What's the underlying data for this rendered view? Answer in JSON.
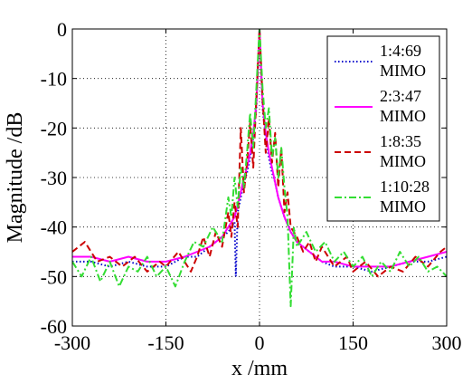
{
  "chart_data": {
    "type": "line",
    "xlabel": "x /mm",
    "ylabel": "Magnitude /dB",
    "xlim": [
      -300,
      300
    ],
    "ylim": [
      -60,
      0
    ],
    "xticks": [
      "-300",
      "-150",
      "0",
      "150",
      "300"
    ],
    "yticks": [
      "0",
      "-10",
      "-20",
      "-30",
      "-40",
      "-50",
      "-60"
    ],
    "grid": true,
    "legend_position": "top-right",
    "series": [
      {
        "name_line1": "1:4:69",
        "name_line2": "MIMO",
        "color": "#0000cc",
        "dash": "dotted",
        "x": [
          -300,
          -270,
          -240,
          -210,
          -180,
          -150,
          -120,
          -100,
          -80,
          -60,
          -50,
          -40,
          -38,
          -35,
          -30,
          -25,
          -20,
          -15,
          -10,
          -5,
          0,
          5,
          10,
          15,
          20,
          25,
          30,
          35,
          40,
          50,
          60,
          80,
          100,
          120,
          150,
          180,
          210,
          240,
          270,
          300
        ],
        "y": [
          -47,
          -47,
          -48,
          -47,
          -48,
          -48,
          -46,
          -46,
          -44,
          -42,
          -41,
          -39,
          -50,
          -37,
          -34,
          -31,
          -29,
          -26,
          -22,
          -16,
          0,
          -16,
          -22,
          -26,
          -29,
          -31,
          -34,
          -36,
          -38,
          -41,
          -43,
          -45,
          -47,
          -48,
          -48,
          -49,
          -48,
          -47,
          -47,
          -46
        ]
      },
      {
        "name_line1": "2:3:47",
        "name_line2": "MIMO",
        "color": "#ff00ff",
        "dash": "solid",
        "x": [
          -300,
          -270,
          -240,
          -210,
          -180,
          -150,
          -120,
          -100,
          -80,
          -60,
          -50,
          -40,
          -30,
          -25,
          -20,
          -15,
          -10,
          -5,
          0,
          5,
          10,
          15,
          20,
          25,
          30,
          40,
          50,
          60,
          80,
          100,
          120,
          150,
          180,
          210,
          240,
          270,
          300
        ],
        "y": [
          -46,
          -46,
          -47,
          -46,
          -47,
          -47,
          -46,
          -45,
          -44,
          -42,
          -40,
          -38,
          -33,
          -30,
          -28,
          -25,
          -21,
          -15,
          0,
          -15,
          -21,
          -25,
          -28,
          -31,
          -34,
          -38,
          -41,
          -43,
          -45,
          -47,
          -47,
          -48,
          -48,
          -48,
          -47,
          -46,
          -45
        ]
      },
      {
        "name_line1": "1:8:35",
        "name_line2": "MIMO",
        "color": "#cc0000",
        "dash": "dashed",
        "x": [
          -300,
          -280,
          -260,
          -240,
          -220,
          -200,
          -180,
          -160,
          -150,
          -130,
          -110,
          -100,
          -90,
          -80,
          -70,
          -60,
          -50,
          -45,
          -40,
          -35,
          -30,
          -25,
          -20,
          -15,
          -10,
          -5,
          0,
          5,
          10,
          15,
          20,
          25,
          30,
          35,
          40,
          45,
          50,
          60,
          70,
          80,
          90,
          100,
          120,
          140,
          150,
          170,
          190,
          210,
          230,
          250,
          270,
          290,
          300
        ],
        "y": [
          -45,
          -43,
          -47,
          -46,
          -48,
          -46,
          -49,
          -47,
          -48,
          -45,
          -49,
          -46,
          -42,
          -46,
          -41,
          -44,
          -37,
          -42,
          -35,
          -40,
          -20,
          -33,
          -27,
          -19,
          -28,
          -14,
          0,
          -14,
          -25,
          -18,
          -27,
          -21,
          -32,
          -24,
          -37,
          -33,
          -40,
          -42,
          -45,
          -43,
          -47,
          -44,
          -48,
          -46,
          -49,
          -47,
          -50,
          -48,
          -49,
          -46,
          -48,
          -45,
          -44
        ]
      },
      {
        "name_line1": "1:10:28",
        "name_line2": "MIMO",
        "color": "#33dd33",
        "dash": "dashdot",
        "x": [
          -300,
          -285,
          -270,
          -255,
          -240,
          -225,
          -210,
          -195,
          -180,
          -165,
          -150,
          -135,
          -120,
          -105,
          -90,
          -75,
          -60,
          -50,
          -45,
          -40,
          -35,
          -30,
          -25,
          -20,
          -15,
          -10,
          -5,
          0,
          5,
          10,
          15,
          20,
          25,
          30,
          35,
          40,
          45,
          50,
          55,
          60,
          75,
          90,
          105,
          120,
          135,
          150,
          165,
          180,
          195,
          210,
          225,
          240,
          255,
          270,
          285,
          300
        ],
        "y": [
          -47,
          -50,
          -46,
          -51,
          -47,
          -52,
          -48,
          -49,
          -46,
          -50,
          -48,
          -52,
          -47,
          -43,
          -44,
          -40,
          -43,
          -34,
          -38,
          -30,
          -36,
          -28,
          -32,
          -25,
          -17,
          -24,
          -12,
          0,
          -12,
          -20,
          -16,
          -26,
          -22,
          -30,
          -24,
          -32,
          -38,
          -56,
          -40,
          -44,
          -41,
          -45,
          -43,
          -47,
          -45,
          -48,
          -46,
          -50,
          -47,
          -49,
          -45,
          -48,
          -46,
          -49,
          -48,
          -50
        ]
      }
    ]
  }
}
